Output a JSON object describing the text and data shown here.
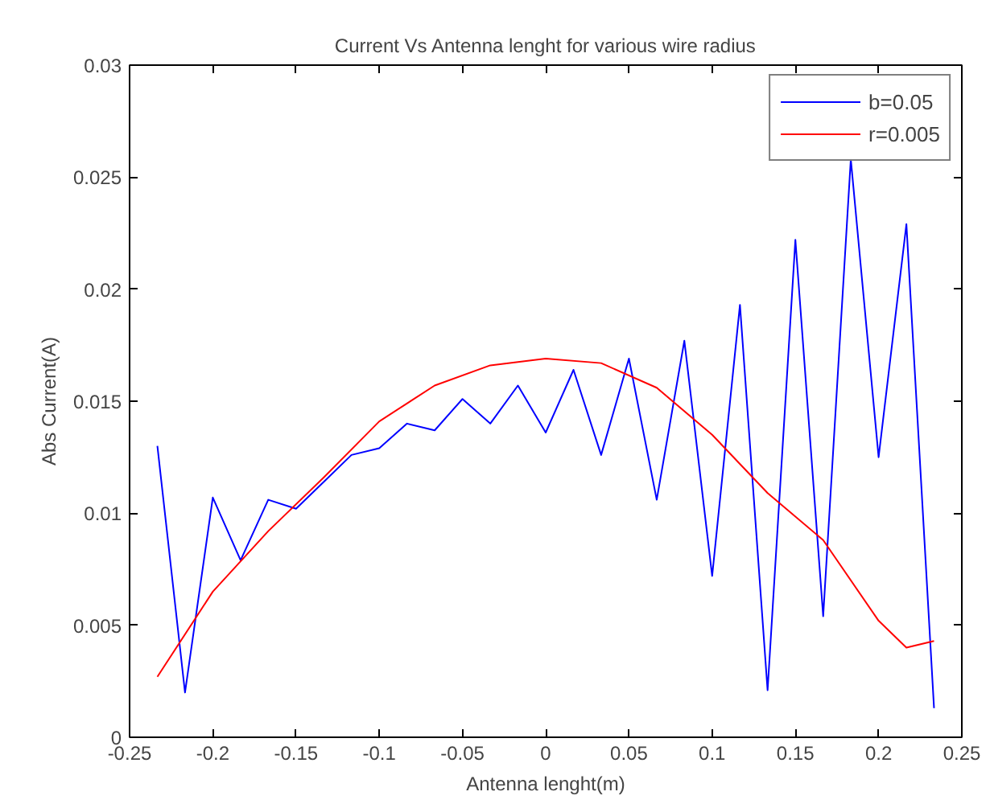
{
  "chart_data": {
    "type": "line",
    "title": "Current Vs Antenna lenght for various wire radius",
    "xlabel": "Antenna lenght(m)",
    "ylabel": "Abs Current(A)",
    "xlim": [
      -0.25,
      0.25
    ],
    "xticks": [
      -0.25,
      -0.2,
      -0.15,
      -0.1,
      -0.05,
      0,
      0.05,
      0.1,
      0.15,
      0.2,
      0.25
    ],
    "ylim": [
      0,
      0.03
    ],
    "yticks": [
      0,
      0.005,
      0.01,
      0.015,
      0.02,
      0.025,
      0.03
    ],
    "grid": false,
    "legend": "top right",
    "series": [
      {
        "name": "b=0.05",
        "color": "#0000ff",
        "x": [
          -0.2333,
          -0.2167,
          -0.2,
          -0.1833,
          -0.1667,
          -0.15,
          -0.1333,
          -0.1167,
          -0.1,
          -0.0833,
          -0.0667,
          -0.05,
          -0.0333,
          -0.0167,
          0,
          0.0167,
          0.0333,
          0.05,
          0.0667,
          0.0833,
          0.1,
          0.1167,
          0.1333,
          0.15,
          0.1667,
          0.1833,
          0.2,
          0.2167,
          0.2333
        ],
        "values": [
          0.013,
          0.002,
          0.0107,
          0.0079,
          0.0106,
          0.0102,
          0.0114,
          0.0126,
          0.0129,
          0.014,
          0.0137,
          0.0151,
          0.014,
          0.0157,
          0.0136,
          0.0164,
          0.0126,
          0.0169,
          0.0106,
          0.0177,
          0.0072,
          0.0193,
          0.0021,
          0.0222,
          0.0054,
          0.0258,
          0.0125,
          0.0229,
          0.0013
        ]
      },
      {
        "name": "r=0.005",
        "color": "#ff0000",
        "x": [
          -0.2333,
          -0.2,
          -0.1667,
          -0.1333,
          -0.1,
          -0.0667,
          -0.0333,
          0,
          0.0333,
          0.0667,
          0.1,
          0.1333,
          0.1667,
          0.2,
          0.2167,
          0.2333
        ],
        "values": [
          0.0027,
          0.0065,
          0.0092,
          0.0116,
          0.0141,
          0.0157,
          0.0166,
          0.0169,
          0.0167,
          0.0156,
          0.0135,
          0.0109,
          0.0088,
          0.0052,
          0.004,
          0.0043
        ]
      }
    ]
  }
}
